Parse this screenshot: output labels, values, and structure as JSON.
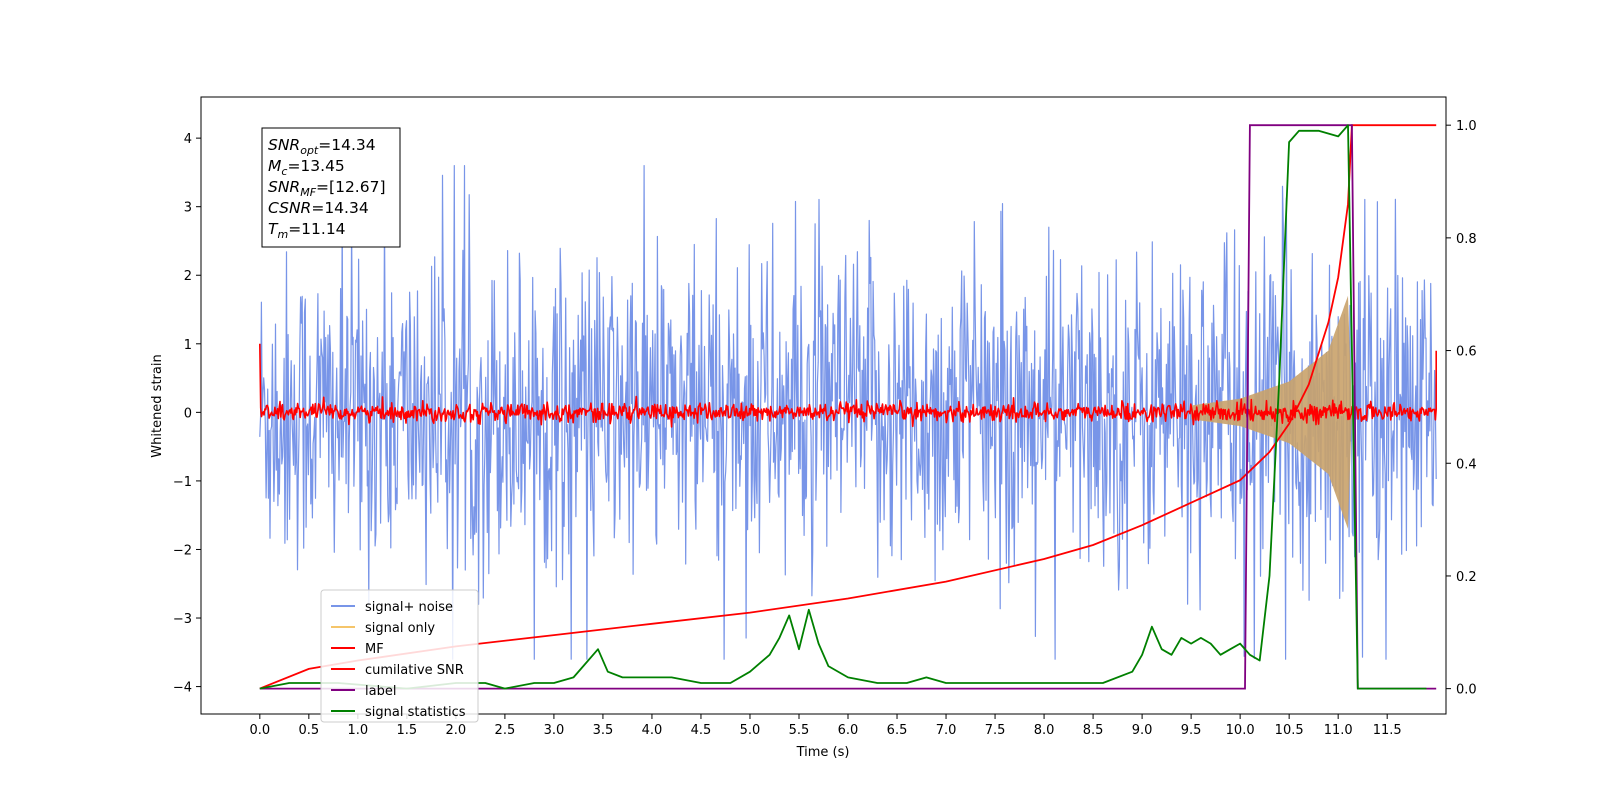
{
  "chart_data": {
    "type": "line",
    "xlabel": "Time (s)",
    "ylabel": "Whitened strain",
    "xlim": [
      -0.6,
      12.1
    ],
    "ylim": [
      -4.4,
      4.6
    ],
    "y2lim": [
      -0.045,
      1.05
    ],
    "xticks": [
      "0.0",
      "0.5",
      "1.0",
      "1.5",
      "2.0",
      "2.5",
      "3.0",
      "3.5",
      "4.0",
      "4.5",
      "5.0",
      "5.5",
      "6.0",
      "6.5",
      "7.0",
      "7.5",
      "8.0",
      "8.5",
      "9.0",
      "9.5",
      "10.0",
      "10.5",
      "11.0",
      "11.5"
    ],
    "yticks": [
      "4",
      "3",
      "2",
      "1",
      "0",
      "−1",
      "−2",
      "−3",
      "−4"
    ],
    "y2ticks": [
      "1.0",
      "0.8",
      "0.6",
      "0.4",
      "0.2",
      "0.0"
    ],
    "grid": false,
    "legend_position": "bottom-left",
    "annotation": [
      {
        "name": "SNR",
        "sub": "opt",
        "value": "=14.34"
      },
      {
        "name": "M",
        "sub": "c",
        "value": "=13.45"
      },
      {
        "name": "SNR",
        "sub": "MF",
        "value": "=[12.67]"
      },
      {
        "name": "CSNR",
        "sub": "",
        "value": "=14.34"
      },
      {
        "name": "T",
        "sub": "m",
        "value": "=11.14"
      }
    ],
    "series": [
      {
        "name": "signal+ noise",
        "color": "#7895e8",
        "axis": "left",
        "kind": "noise",
        "amplitude_envelope": [
          [
            0.0,
            2.1
          ],
          [
            9.0,
            2.1
          ],
          [
            10.0,
            2.2
          ],
          [
            11.0,
            2.4
          ],
          [
            12.0,
            2.0
          ]
        ]
      },
      {
        "name": "signal only",
        "color": "#f5c56a",
        "axis": "left",
        "kind": "chirp",
        "amplitude_envelope": [
          [
            9.5,
            0.1
          ],
          [
            10.0,
            0.2
          ],
          [
            10.5,
            0.45
          ],
          [
            10.9,
            0.9
          ],
          [
            11.1,
            1.7
          ],
          [
            11.14,
            0.0
          ]
        ]
      },
      {
        "name": "MF",
        "color": "#ff0000",
        "axis": "left",
        "kind": "noise",
        "amplitude_envelope": [
          [
            0.0,
            0.15
          ],
          [
            12.0,
            0.15
          ]
        ]
      },
      {
        "name": "cumilative SNR",
        "color": "#ff0000",
        "axis": "right",
        "x": [
          0.0,
          0.5,
          1.0,
          2.0,
          3.0,
          4.0,
          5.0,
          6.0,
          7.0,
          8.0,
          8.5,
          9.0,
          9.5,
          10.0,
          10.3,
          10.5,
          10.7,
          10.9,
          11.0,
          11.1,
          11.14,
          12.0
        ],
        "y": [
          0.0,
          0.035,
          0.05,
          0.075,
          0.095,
          0.115,
          0.135,
          0.16,
          0.19,
          0.23,
          0.255,
          0.29,
          0.33,
          0.37,
          0.42,
          0.47,
          0.54,
          0.65,
          0.73,
          0.86,
          1.0,
          1.0
        ]
      },
      {
        "name": "label",
        "color": "#800080",
        "axis": "right",
        "x": [
          0.0,
          10.05,
          10.1,
          11.14,
          11.2,
          12.0
        ],
        "y": [
          0.0,
          0.0,
          1.0,
          1.0,
          0.0,
          0.0
        ]
      },
      {
        "name": "signal statistics",
        "color": "#008000",
        "axis": "right",
        "x": [
          0.0,
          0.3,
          0.8,
          1.5,
          2.0,
          2.3,
          2.5,
          2.8,
          3.0,
          3.2,
          3.3,
          3.45,
          3.55,
          3.7,
          3.9,
          4.2,
          4.5,
          4.8,
          5.0,
          5.2,
          5.3,
          5.4,
          5.5,
          5.6,
          5.7,
          5.8,
          6.0,
          6.3,
          6.6,
          6.8,
          7.0,
          7.3,
          7.6,
          8.0,
          8.3,
          8.6,
          8.9,
          9.0,
          9.1,
          9.2,
          9.3,
          9.4,
          9.5,
          9.6,
          9.7,
          9.8,
          9.9,
          10.0,
          10.1,
          10.2,
          10.3,
          10.4,
          10.5,
          10.6,
          10.8,
          11.0,
          11.1,
          11.2,
          11.5,
          11.9
        ],
        "y": [
          0.0,
          0.01,
          0.01,
          0.0,
          0.01,
          0.01,
          0.0,
          0.01,
          0.01,
          0.02,
          0.04,
          0.07,
          0.03,
          0.02,
          0.02,
          0.02,
          0.01,
          0.01,
          0.03,
          0.06,
          0.09,
          0.13,
          0.07,
          0.14,
          0.08,
          0.04,
          0.02,
          0.01,
          0.01,
          0.02,
          0.01,
          0.01,
          0.01,
          0.01,
          0.01,
          0.01,
          0.03,
          0.06,
          0.11,
          0.07,
          0.06,
          0.09,
          0.08,
          0.09,
          0.08,
          0.06,
          0.07,
          0.08,
          0.06,
          0.05,
          0.2,
          0.55,
          0.97,
          0.99,
          0.99,
          0.98,
          1.0,
          0.0,
          0.0,
          0.0
        ]
      }
    ]
  }
}
